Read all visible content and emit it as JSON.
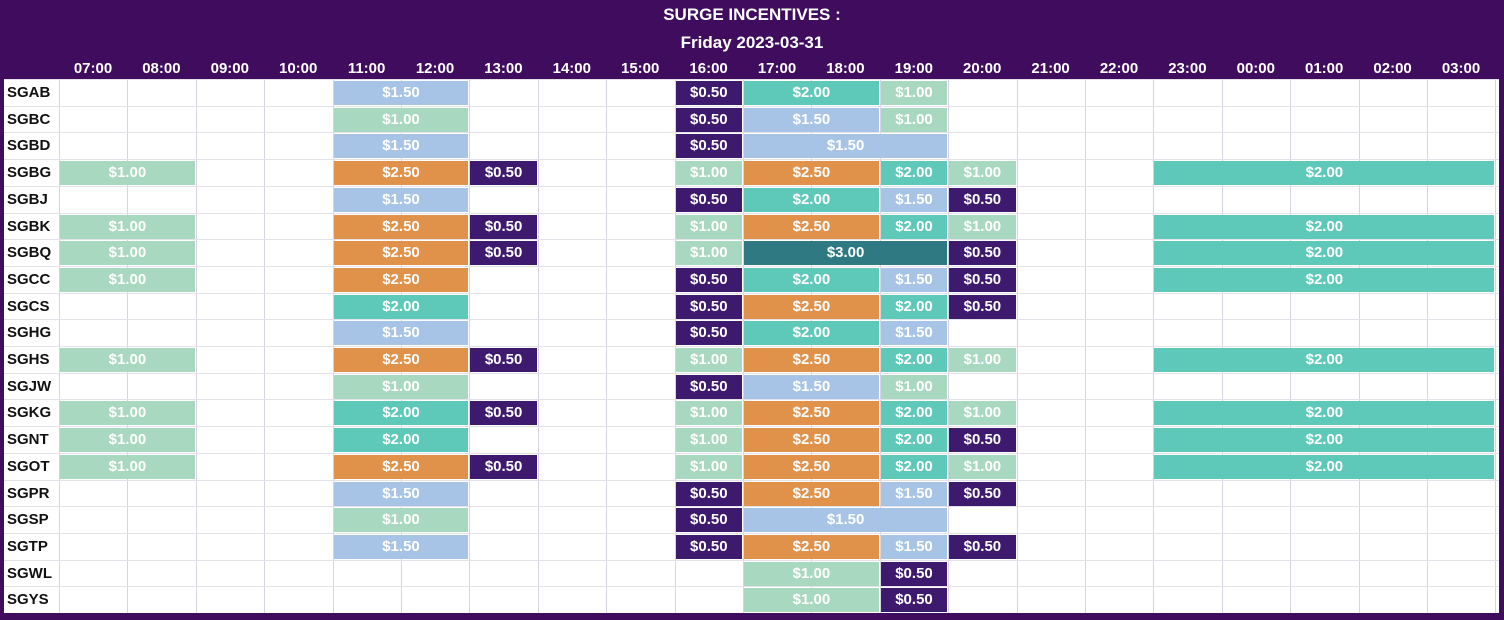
{
  "header": {
    "title": "SURGE INCENTIVES :",
    "subtitle": "Friday 2023-03-31"
  },
  "hours": [
    "07:00",
    "08:00",
    "09:00",
    "10:00",
    "11:00",
    "12:00",
    "13:00",
    "14:00",
    "15:00",
    "16:00",
    "17:00",
    "18:00",
    "19:00",
    "20:00",
    "21:00",
    "22:00",
    "23:00",
    "00:00",
    "01:00",
    "02:00",
    "03:00"
  ],
  "colors": {
    "$0.50": "#3d1a6e",
    "$1.00": "#a9d8c0",
    "$1.50": "#a7c4e6",
    "$2.00": "#5ec9b9",
    "$2.50": "#e0924a",
    "$3.00": "#2f7a82"
  },
  "rows": [
    {
      "label": "SGAB",
      "spans": [
        {
          "start": 4,
          "values": [
            "$1.50",
            "$1.50"
          ]
        },
        {
          "start": 9,
          "values": [
            "$0.50",
            "$2.00",
            "$2.00",
            "$1.00"
          ]
        }
      ]
    },
    {
      "label": "SGBC",
      "spans": [
        {
          "start": 4,
          "values": [
            "$1.00",
            "$1.00"
          ]
        },
        {
          "start": 9,
          "values": [
            "$0.50",
            "$1.50",
            "$1.50",
            "$1.00"
          ]
        }
      ]
    },
    {
      "label": "SGBD",
      "spans": [
        {
          "start": 4,
          "values": [
            "$1.50",
            "$1.50"
          ]
        },
        {
          "start": 9,
          "values": [
            "$0.50",
            "$1.50",
            "$1.50",
            "$1.50"
          ]
        }
      ]
    },
    {
      "label": "SGBG",
      "spans": [
        {
          "start": 0,
          "values": [
            "$1.00",
            "$1.00"
          ]
        },
        {
          "start": 4,
          "values": [
            "$2.50",
            "$2.50",
            "$0.50"
          ]
        },
        {
          "start": 9,
          "values": [
            "$1.00",
            "$2.50",
            "$2.50",
            "$2.00",
            "$1.00"
          ]
        },
        {
          "start": 16,
          "values": [
            "$2.00",
            "$2.00",
            "$2.00",
            "$2.00",
            "$2.00"
          ]
        }
      ]
    },
    {
      "label": "SGBJ",
      "spans": [
        {
          "start": 4,
          "values": [
            "$1.50",
            "$1.50"
          ]
        },
        {
          "start": 9,
          "values": [
            "$0.50",
            "$2.00",
            "$2.00",
            "$1.50",
            "$0.50"
          ]
        }
      ]
    },
    {
      "label": "SGBK",
      "spans": [
        {
          "start": 0,
          "values": [
            "$1.00",
            "$1.00"
          ]
        },
        {
          "start": 4,
          "values": [
            "$2.50",
            "$2.50",
            "$0.50"
          ]
        },
        {
          "start": 9,
          "values": [
            "$1.00",
            "$2.50",
            "$2.50",
            "$2.00",
            "$1.00"
          ]
        },
        {
          "start": 16,
          "values": [
            "$2.00",
            "$2.00",
            "$2.00",
            "$2.00",
            "$2.00"
          ]
        }
      ]
    },
    {
      "label": "SGBQ",
      "spans": [
        {
          "start": 0,
          "values": [
            "$1.00",
            "$1.00"
          ]
        },
        {
          "start": 4,
          "values": [
            "$2.50",
            "$2.50",
            "$0.50"
          ]
        },
        {
          "start": 9,
          "values": [
            "$1.00",
            "$3.00",
            "$3.00",
            "$3.00",
            "$0.50"
          ]
        },
        {
          "start": 16,
          "values": [
            "$2.00",
            "$2.00",
            "$2.00",
            "$2.00",
            "$2.00"
          ]
        }
      ]
    },
    {
      "label": "SGCC",
      "spans": [
        {
          "start": 0,
          "values": [
            "$1.00",
            "$1.00"
          ]
        },
        {
          "start": 4,
          "values": [
            "$2.50",
            "$2.50"
          ]
        },
        {
          "start": 9,
          "values": [
            "$0.50",
            "$2.00",
            "$2.00",
            "$1.50",
            "$0.50"
          ]
        },
        {
          "start": 16,
          "values": [
            "$2.00",
            "$2.00",
            "$2.00",
            "$2.00",
            "$2.00"
          ]
        }
      ]
    },
    {
      "label": "SGCS",
      "spans": [
        {
          "start": 4,
          "values": [
            "$2.00",
            "$2.00"
          ]
        },
        {
          "start": 9,
          "values": [
            "$0.50",
            "$2.50",
            "$2.50",
            "$2.00",
            "$0.50"
          ]
        }
      ]
    },
    {
      "label": "SGHG",
      "spans": [
        {
          "start": 4,
          "values": [
            "$1.50",
            "$1.50"
          ]
        },
        {
          "start": 9,
          "values": [
            "$0.50",
            "$2.00",
            "$2.00",
            "$1.50"
          ]
        }
      ]
    },
    {
      "label": "SGHS",
      "spans": [
        {
          "start": 0,
          "values": [
            "$1.00",
            "$1.00"
          ]
        },
        {
          "start": 4,
          "values": [
            "$2.50",
            "$2.50",
            "$0.50"
          ]
        },
        {
          "start": 9,
          "values": [
            "$1.00",
            "$2.50",
            "$2.50",
            "$2.00",
            "$1.00"
          ]
        },
        {
          "start": 16,
          "values": [
            "$2.00",
            "$2.00",
            "$2.00",
            "$2.00",
            "$2.00"
          ]
        }
      ]
    },
    {
      "label": "SGJW",
      "spans": [
        {
          "start": 4,
          "values": [
            "$1.00",
            "$1.00"
          ]
        },
        {
          "start": 9,
          "values": [
            "$0.50",
            "$1.50",
            "$1.50",
            "$1.00"
          ]
        }
      ]
    },
    {
      "label": "SGKG",
      "spans": [
        {
          "start": 0,
          "values": [
            "$1.00",
            "$1.00"
          ]
        },
        {
          "start": 4,
          "values": [
            "$2.00",
            "$2.00",
            "$0.50"
          ]
        },
        {
          "start": 9,
          "values": [
            "$1.00",
            "$2.50",
            "$2.50",
            "$2.00",
            "$1.00"
          ]
        },
        {
          "start": 16,
          "values": [
            "$2.00",
            "$2.00",
            "$2.00",
            "$2.00",
            "$2.00"
          ]
        }
      ]
    },
    {
      "label": "SGNT",
      "spans": [
        {
          "start": 0,
          "values": [
            "$1.00",
            "$1.00"
          ]
        },
        {
          "start": 4,
          "values": [
            "$2.00",
            "$2.00"
          ]
        },
        {
          "start": 9,
          "values": [
            "$1.00",
            "$2.50",
            "$2.50",
            "$2.00",
            "$0.50"
          ]
        },
        {
          "start": 16,
          "values": [
            "$2.00",
            "$2.00",
            "$2.00",
            "$2.00",
            "$2.00"
          ]
        }
      ]
    },
    {
      "label": "SGOT",
      "spans": [
        {
          "start": 0,
          "values": [
            "$1.00",
            "$1.00"
          ]
        },
        {
          "start": 4,
          "values": [
            "$2.50",
            "$2.50",
            "$0.50"
          ]
        },
        {
          "start": 9,
          "values": [
            "$1.00",
            "$2.50",
            "$2.50",
            "$2.00",
            "$1.00"
          ]
        },
        {
          "start": 16,
          "values": [
            "$2.00",
            "$2.00",
            "$2.00",
            "$2.00",
            "$2.00"
          ]
        }
      ]
    },
    {
      "label": "SGPR",
      "spans": [
        {
          "start": 4,
          "values": [
            "$1.50",
            "$1.50"
          ]
        },
        {
          "start": 9,
          "values": [
            "$0.50",
            "$2.50",
            "$2.50",
            "$1.50",
            "$0.50"
          ]
        }
      ]
    },
    {
      "label": "SGSP",
      "spans": [
        {
          "start": 4,
          "values": [
            "$1.00",
            "$1.00"
          ]
        },
        {
          "start": 9,
          "values": [
            "$0.50",
            "$1.50",
            "$1.50",
            "$1.50"
          ]
        }
      ]
    },
    {
      "label": "SGTP",
      "spans": [
        {
          "start": 4,
          "values": [
            "$1.50",
            "$1.50"
          ]
        },
        {
          "start": 9,
          "values": [
            "$0.50",
            "$2.50",
            "$2.50",
            "$1.50",
            "$0.50"
          ]
        }
      ]
    },
    {
      "label": "SGWL",
      "spans": [
        {
          "start": 10,
          "values": [
            "$1.00",
            "$1.00",
            "$0.50"
          ]
        }
      ]
    },
    {
      "label": "SGYS",
      "spans": [
        {
          "start": 10,
          "values": [
            "$1.00",
            "$1.00",
            "$0.50"
          ]
        }
      ]
    }
  ]
}
